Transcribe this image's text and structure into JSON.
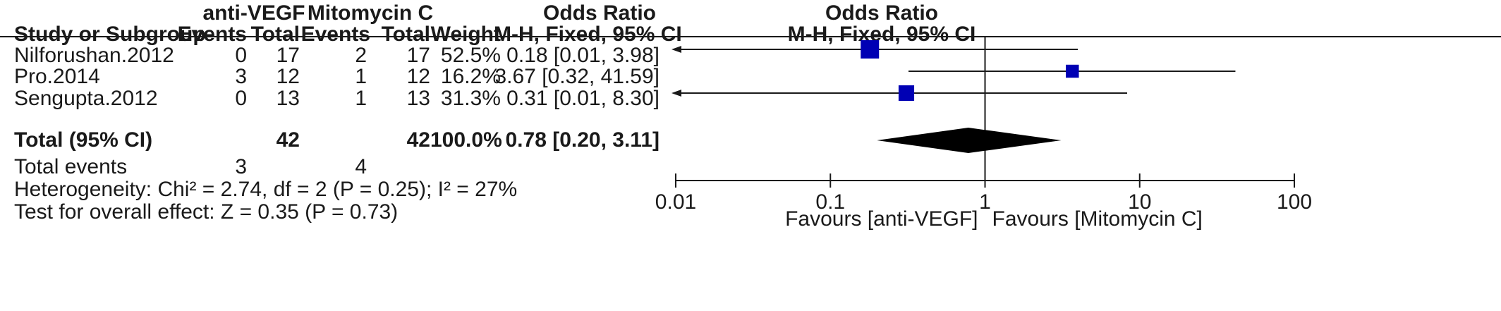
{
  "header": {
    "group1": "anti-VEGF",
    "group2": "Mitomycin C",
    "or_table": "Odds Ratio",
    "or_plot": "Odds Ratio",
    "study": "Study or Subgroup",
    "events1": "Events",
    "total1": "Total",
    "events2": "Events",
    "total2": "Total",
    "weight": "Weight",
    "method_table": "M-H, Fixed, 95% CI",
    "method_plot": "M-H, Fixed, 95% CI"
  },
  "rows": [
    {
      "study": "Nilforushan.2012",
      "events1": "0",
      "total1": "17",
      "events2": "2",
      "total2": "17",
      "weight": "52.5%",
      "ci": "0.18 [0.01, 3.98]"
    },
    {
      "study": "Pro.2014",
      "events1": "3",
      "total1": "12",
      "events2": "1",
      "total2": "12",
      "weight": "16.2%",
      "ci": "3.67 [0.32, 41.59]"
    },
    {
      "study": "Sengupta.2012",
      "events1": "0",
      "total1": "13",
      "events2": "1",
      "total2": "13",
      "weight": "31.3%",
      "ci": "0.31 [0.01, 8.30]"
    }
  ],
  "total": {
    "label": "Total (95% CI)",
    "total1": "42",
    "total2": "42",
    "weight": "100.0%",
    "ci": "0.78 [0.20, 3.11]"
  },
  "total_events": {
    "label": "Total events",
    "events1": "3",
    "events2": "4"
  },
  "heterogeneity": "Heterogeneity: Chi² = 2.74, df = 2 (P = 0.25); I² = 27%",
  "overall_effect": "Test for overall effect: Z = 0.35 (P = 0.73)",
  "axis": {
    "ticks": [
      "0.01",
      "0.1",
      "1",
      "10",
      "100"
    ],
    "favours_left": "Favours [anti-VEGF]",
    "favours_right": "Favours [Mitomycin C]"
  },
  "colors": {
    "marker": "#0000b4",
    "diamond": "#000000",
    "line": "#1a1a1a"
  },
  "chart_data": {
    "type": "forest",
    "scale": "log",
    "xlim": [
      0.01,
      100
    ],
    "null_value": 1,
    "studies": [
      {
        "name": "Nilforushan.2012",
        "or": 0.18,
        "lower": 0.01,
        "upper": 3.98,
        "weight": 52.5
      },
      {
        "name": "Pro.2014",
        "or": 3.67,
        "lower": 0.32,
        "upper": 41.59,
        "weight": 16.2
      },
      {
        "name": "Sengupta.2012",
        "or": 0.31,
        "lower": 0.01,
        "upper": 8.3,
        "weight": 31.3
      }
    ],
    "pooled": {
      "or": 0.78,
      "lower": 0.2,
      "upper": 3.11
    }
  }
}
